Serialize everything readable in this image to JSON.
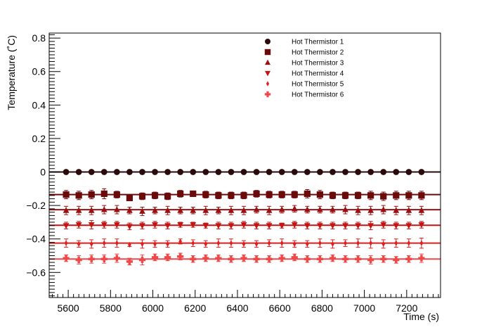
{
  "chart_data": {
    "type": "scatter",
    "title": "",
    "xlabel": "Time (s)",
    "ylabel": "Temperature (˚C)",
    "xlim": [
      5510,
      7360
    ],
    "ylim": [
      -0.75,
      0.83
    ],
    "x_ticks": [
      5600,
      5800,
      6000,
      6200,
      6400,
      6600,
      6800,
      7000,
      7200
    ],
    "x_tick_labels": [
      "5600",
      "5800",
      "6000",
      "6200",
      "6400",
      "6600",
      "6800",
      "7000",
      "7200"
    ],
    "y_ticks": [
      -0.6,
      -0.4,
      -0.2,
      0,
      0.2,
      0.4,
      0.6,
      0.8
    ],
    "y_tick_labels": [
      "−0.6",
      "−0.4",
      "−0.2",
      "0",
      "0.2",
      "0.4",
      "0.6",
      "0.8"
    ],
    "grid": false,
    "legend_position": "top-right",
    "x": [
      5590,
      5650,
      5710,
      5770,
      5830,
      5890,
      5950,
      6010,
      6070,
      6130,
      6190,
      6250,
      6310,
      6370,
      6430,
      6490,
      6550,
      6610,
      6670,
      6730,
      6790,
      6850,
      6910,
      6970,
      7030,
      7090,
      7150,
      7210,
      7270
    ],
    "series": [
      {
        "name": "Hot Thermistor 1",
        "marker": "circle",
        "color": "#2a0a0a",
        "fit_level": 0.0,
        "values": [
          0,
          0,
          0,
          0,
          0,
          0,
          0,
          0,
          0,
          0,
          0,
          0,
          0,
          0,
          0,
          0,
          0,
          0,
          0,
          0,
          0,
          0,
          0,
          0,
          0,
          0,
          0,
          0,
          0
        ],
        "errors": [
          0.008,
          0.008,
          0.008,
          0.008,
          0.008,
          0.008,
          0.008,
          0.008,
          0.008,
          0.008,
          0.008,
          0.008,
          0.008,
          0.008,
          0.008,
          0.008,
          0.008,
          0.008,
          0.008,
          0.008,
          0.008,
          0.008,
          0.008,
          0.008,
          0.008,
          0.008,
          0.008,
          0.008,
          0.008
        ]
      },
      {
        "name": "Hot Thermistor 2",
        "marker": "square",
        "color": "#6b0a0a",
        "fit_level": -0.135,
        "values": [
          -0.135,
          -0.14,
          -0.135,
          -0.13,
          -0.135,
          -0.155,
          -0.145,
          -0.14,
          -0.145,
          -0.13,
          -0.13,
          -0.135,
          -0.14,
          -0.14,
          -0.14,
          -0.13,
          -0.135,
          -0.135,
          -0.135,
          -0.13,
          -0.135,
          -0.14,
          -0.14,
          -0.14,
          -0.14,
          -0.145,
          -0.14,
          -0.14,
          -0.14
        ],
        "errors": [
          0.025,
          0.025,
          0.025,
          0.03,
          0.02,
          0.01,
          0.02,
          0.02,
          0.02,
          0.02,
          0.01,
          0.02,
          0.02,
          0.02,
          0.02,
          0.02,
          0.02,
          0.02,
          0.02,
          0.025,
          0.025,
          0.02,
          0.02,
          0.02,
          0.025,
          0.025,
          0.025,
          0.025,
          0.025
        ]
      },
      {
        "name": "Hot Thermistor 3",
        "marker": "triangle-up",
        "color": "#9a1010",
        "fit_level": -0.225,
        "values": [
          -0.23,
          -0.23,
          -0.23,
          -0.225,
          -0.225,
          -0.23,
          -0.235,
          -0.23,
          -0.23,
          -0.23,
          -0.23,
          -0.23,
          -0.23,
          -0.23,
          -0.23,
          -0.225,
          -0.23,
          -0.225,
          -0.22,
          -0.225,
          -0.225,
          -0.225,
          -0.225,
          -0.23,
          -0.23,
          -0.225,
          -0.23,
          -0.23,
          -0.23
        ],
        "errors": [
          0.025,
          0.025,
          0.025,
          0.025,
          0.025,
          0.02,
          0.025,
          0.02,
          0.025,
          0.02,
          0.02,
          0.025,
          0.02,
          0.025,
          0.025,
          0.02,
          0.025,
          0.02,
          0.02,
          0.02,
          0.02,
          0.02,
          0.025,
          0.025,
          0.025,
          0.025,
          0.025,
          0.025,
          0.025
        ]
      },
      {
        "name": "Hot Thermistor 4",
        "marker": "triangle-down",
        "color": "#c41414",
        "fit_level": -0.318,
        "values": [
          -0.32,
          -0.315,
          -0.315,
          -0.315,
          -0.315,
          -0.325,
          -0.32,
          -0.315,
          -0.32,
          -0.315,
          -0.315,
          -0.32,
          -0.32,
          -0.32,
          -0.315,
          -0.32,
          -0.32,
          -0.32,
          -0.315,
          -0.32,
          -0.32,
          -0.32,
          -0.32,
          -0.32,
          -0.32,
          -0.315,
          -0.32,
          -0.32,
          -0.315
        ],
        "errors": [
          0.02,
          0.02,
          0.025,
          0.02,
          0.02,
          0.02,
          0.02,
          0.02,
          0.02,
          0.015,
          0.015,
          0.015,
          0.02,
          0.02,
          0.02,
          0.02,
          0.02,
          0.015,
          0.02,
          0.02,
          0.02,
          0.02,
          0.02,
          0.02,
          0.025,
          0.02,
          0.02,
          0.02,
          0.02
        ]
      },
      {
        "name": "Hot Thermistor 5",
        "marker": "diamond",
        "color": "#e01e1e",
        "fit_level": -0.425,
        "values": [
          -0.425,
          -0.43,
          -0.43,
          -0.425,
          -0.425,
          -0.435,
          -0.43,
          -0.43,
          -0.43,
          -0.415,
          -0.425,
          -0.43,
          -0.425,
          -0.425,
          -0.43,
          -0.43,
          -0.425,
          -0.425,
          -0.43,
          -0.43,
          -0.425,
          -0.43,
          -0.425,
          -0.425,
          -0.425,
          -0.43,
          -0.425,
          -0.425,
          -0.425
        ],
        "errors": [
          0.025,
          0.02,
          0.025,
          0.025,
          0.025,
          0.01,
          0.025,
          0.02,
          0.02,
          0.015,
          0.02,
          0.02,
          0.025,
          0.025,
          0.02,
          0.02,
          0.02,
          0.025,
          0.02,
          0.02,
          0.025,
          0.025,
          0.02,
          0.025,
          0.03,
          0.025,
          0.025,
          0.025,
          0.03
        ]
      },
      {
        "name": "Hot Thermistor 6",
        "marker": "cross",
        "color": "#f04848",
        "fit_level": -0.52,
        "values": [
          -0.515,
          -0.525,
          -0.52,
          -0.52,
          -0.515,
          -0.535,
          -0.525,
          -0.51,
          -0.51,
          -0.505,
          -0.52,
          -0.515,
          -0.515,
          -0.52,
          -0.515,
          -0.52,
          -0.52,
          -0.515,
          -0.51,
          -0.52,
          -0.52,
          -0.515,
          -0.52,
          -0.52,
          -0.525,
          -0.52,
          -0.525,
          -0.52,
          -0.515
        ],
        "errors": [
          0.02,
          0.025,
          0.025,
          0.025,
          0.025,
          0.02,
          0.03,
          0.02,
          0.02,
          0.02,
          0.02,
          0.02,
          0.02,
          0.02,
          0.02,
          0.02,
          0.02,
          0.02,
          0.02,
          0.02,
          0.02,
          0.02,
          0.02,
          0.02,
          0.025,
          0.02,
          0.02,
          0.02,
          0.025
        ]
      }
    ]
  }
}
